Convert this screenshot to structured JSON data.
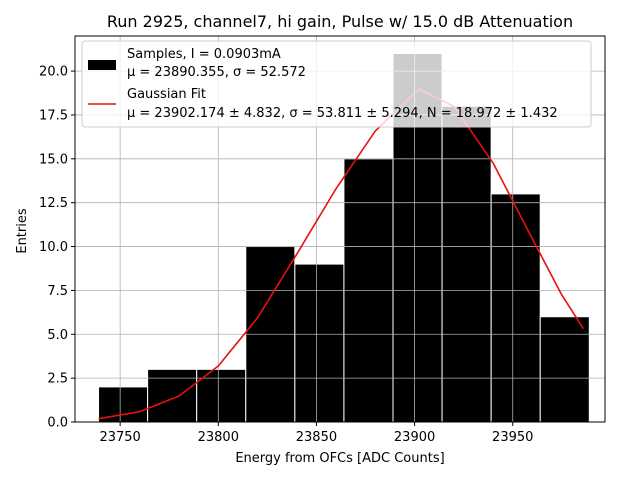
{
  "chart_data": {
    "type": "bar",
    "title": "Run 2925, channel7, hi gain, Pulse w/ 15.0 dB Attenuation",
    "xlabel": "Energy from OFCs [ADC Counts]",
    "ylabel": "Entries",
    "xlim": [
      23727,
      23997
    ],
    "ylim": [
      0,
      22
    ],
    "xticks": [
      23750,
      23800,
      23850,
      23900,
      23950
    ],
    "xtick_labels": [
      "23750",
      "23800",
      "23850",
      "23900",
      "23950"
    ],
    "yticks": [
      0,
      2.5,
      5,
      7.5,
      10,
      12.5,
      15,
      17.5,
      20
    ],
    "ytick_labels": [
      "0.0",
      "2.5",
      "5.0",
      "7.5",
      "10.0",
      "12.5",
      "15.0",
      "17.5",
      "20.0"
    ],
    "grid": true,
    "legend_position": "top-right",
    "bin_edges": [
      23739,
      23764,
      23789,
      23814,
      23839,
      23864,
      23889,
      23914,
      23939,
      23964,
      23989
    ],
    "series": [
      {
        "name": "Samples, I = 0.0903mA",
        "name_line2": "μ = 23890.355, σ = 52.572",
        "kind": "histogram",
        "color": "#000000",
        "values": [
          2,
          3,
          3,
          10,
          9,
          15,
          21,
          18,
          13,
          6
        ]
      },
      {
        "name": "Gaussian Fit",
        "name_line2": "μ = 23902.174 ± 4.832, σ = 53.811 ± 5.294, N = 18.972 ± 1.432",
        "kind": "curve",
        "color": "#e8100c",
        "x": [
          23739,
          23760,
          23780,
          23800,
          23820,
          23840,
          23860,
          23880,
          23902.174,
          23920,
          23940,
          23960,
          23975,
          23986
        ],
        "values": [
          0.19,
          0.59,
          1.48,
          3.19,
          5.94,
          9.57,
          13.3,
          16.59,
          18.97,
          18.0,
          14.76,
          10.44,
          7.24,
          5.32
        ]
      }
    ]
  }
}
